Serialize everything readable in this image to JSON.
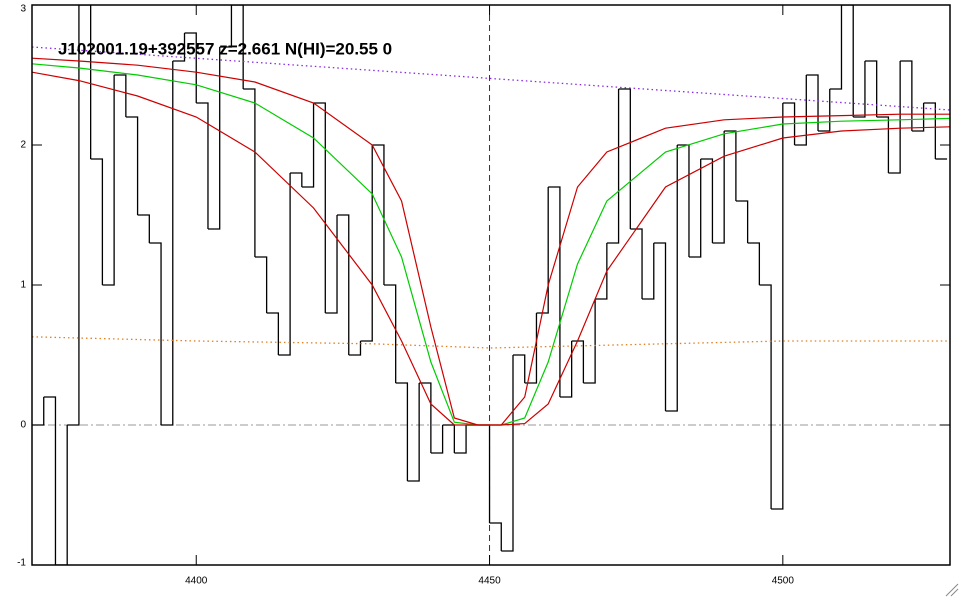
{
  "chart_data": {
    "type": "line",
    "title": "J102001.19+392557 z=2.661 N(HI)=20.55 0",
    "xlim": [
      4372,
      4528.5
    ],
    "ylim": [
      -1,
      3
    ],
    "xticks": [
      4400,
      4450,
      4500
    ],
    "yticks": [
      -1,
      0,
      1,
      2,
      3
    ],
    "zero_line": 0,
    "vline": 4450,
    "series": [
      {
        "style": "step",
        "color": "#000000",
        "x": [
          4373,
          4375,
          4377,
          4379,
          4381,
          4383,
          4385,
          4387,
          4389,
          4391,
          4393,
          4395,
          4397,
          4399,
          4401,
          4403,
          4405,
          4407,
          4409,
          4411,
          4413,
          4415,
          4417,
          4419,
          4421,
          4423,
          4425,
          4427,
          4429,
          4431,
          4433,
          4435,
          4437,
          4439,
          4441,
          4443,
          4445,
          4447,
          4449,
          4451,
          4453,
          4455,
          4457,
          4459,
          4461,
          4463,
          4465,
          4467,
          4469,
          4471,
          4473,
          4475,
          4477,
          4479,
          4481,
          4483,
          4485,
          4487,
          4489,
          4491,
          4493,
          4495,
          4497,
          4499,
          4501,
          4503,
          4505,
          4507,
          4509,
          4511,
          4513,
          4515,
          4517,
          4519,
          4521,
          4523,
          4525,
          4527
        ],
        "values": [
          0.0,
          0.2,
          -1.0,
          0.0,
          3.0,
          1.9,
          1.0,
          2.5,
          2.2,
          1.5,
          1.3,
          0.0,
          2.6,
          2.8,
          2.3,
          1.4,
          2.7,
          3.0,
          2.4,
          1.2,
          0.8,
          0.5,
          1.8,
          1.7,
          2.3,
          0.8,
          1.5,
          0.5,
          0.6,
          2.0,
          1.0,
          0.3,
          -0.4,
          0.3,
          -0.2,
          0.0,
          -0.2,
          0.0,
          0.0,
          -0.7,
          -0.9,
          0.5,
          0.3,
          0.8,
          1.7,
          0.2,
          0.6,
          0.3,
          0.9,
          1.3,
          2.4,
          1.4,
          0.9,
          1.3,
          0.1,
          2.0,
          1.2,
          1.9,
          1.3,
          2.1,
          1.6,
          1.3,
          1.0,
          -0.6,
          2.3,
          2.0,
          2.5,
          2.1,
          2.4,
          3.0,
          2.2,
          2.6,
          2.2,
          1.8,
          2.6,
          2.1,
          2.3,
          1.9
        ]
      },
      {
        "style": "dotted",
        "color": "#8a2be2",
        "x": [
          4372,
          4528.5
        ],
        "values": [
          2.7,
          2.25
        ]
      },
      {
        "style": "dotted",
        "color": "#e08020",
        "x": [
          4372,
          4400,
          4430,
          4450,
          4480,
          4500,
          4528.5
        ],
        "values": [
          0.63,
          0.6,
          0.58,
          0.55,
          0.58,
          0.6,
          0.6
        ]
      },
      {
        "style": "solid",
        "color": "#00cc00",
        "x": [
          4372,
          4380,
          4390,
          4400,
          4410,
          4420,
          4430,
          4435,
          4440,
          4444,
          4448,
          4452,
          4456,
          4460,
          4465,
          4470,
          4480,
          4490,
          4500,
          4510,
          4520,
          4528.5
        ],
        "values": [
          2.58,
          2.55,
          2.5,
          2.43,
          2.3,
          2.05,
          1.65,
          1.2,
          0.45,
          0.02,
          0,
          0,
          0.05,
          0.45,
          1.15,
          1.6,
          1.95,
          2.08,
          2.15,
          2.17,
          2.18,
          2.19
        ]
      },
      {
        "style": "solid",
        "color": "#cc0000",
        "x": [
          4372,
          4380,
          4390,
          4400,
          4410,
          4420,
          4430,
          4435,
          4440,
          4444,
          4448,
          4452,
          4456,
          4460,
          4465,
          4470,
          4480,
          4490,
          4500,
          4510,
          4520,
          4528.5
        ],
        "values": [
          2.62,
          2.6,
          2.57,
          2.52,
          2.45,
          2.3,
          2.0,
          1.6,
          0.7,
          0.05,
          0,
          0,
          0.2,
          1.0,
          1.7,
          1.95,
          2.12,
          2.18,
          2.2,
          2.21,
          2.22,
          2.22
        ]
      },
      {
        "style": "solid",
        "color": "#cc0000",
        "x": [
          4372,
          4380,
          4390,
          4400,
          4410,
          4420,
          4430,
          4435,
          4440,
          4444,
          4448,
          4452,
          4456,
          4460,
          4465,
          4470,
          4480,
          4490,
          4500,
          4510,
          4520,
          4528.5
        ],
        "values": [
          2.52,
          2.46,
          2.35,
          2.2,
          1.95,
          1.55,
          1.0,
          0.6,
          0.15,
          0,
          0,
          0,
          0.01,
          0.15,
          0.6,
          1.1,
          1.7,
          1.92,
          2.05,
          2.1,
          2.12,
          2.13
        ]
      }
    ]
  }
}
